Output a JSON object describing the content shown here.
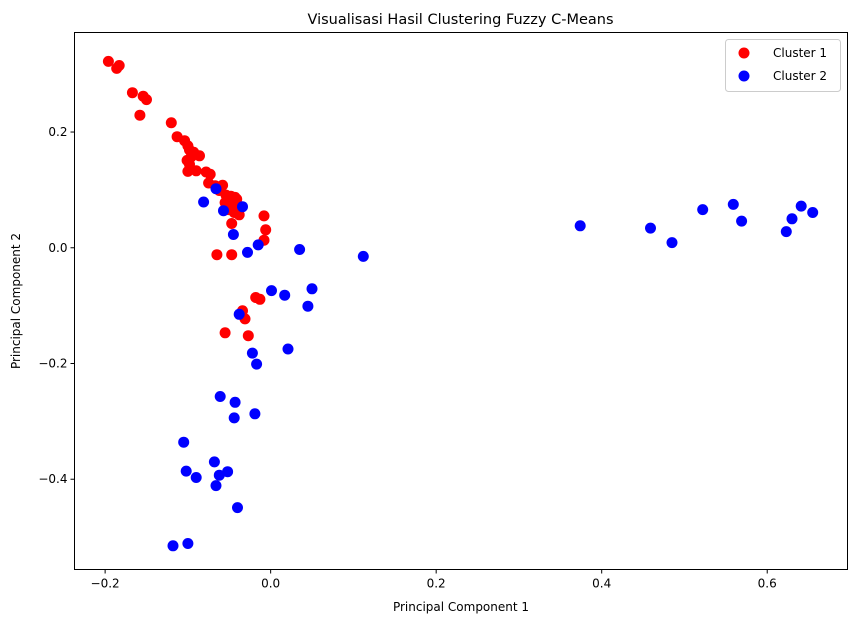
{
  "chart_data": {
    "type": "scatter",
    "title": "Visualisasi Hasil Clustering Fuzzy C-Means",
    "xlabel": "Principal Component 1",
    "ylabel": "Principal Component 2",
    "xlim": [
      -0.237,
      0.697
    ],
    "ylim": [
      -0.556,
      0.372
    ],
    "xticks": [
      -0.2,
      0.0,
      0.2,
      0.4,
      0.6
    ],
    "xtick_labels": [
      "−0.2",
      "0.0",
      "0.2",
      "0.4",
      "0.6"
    ],
    "yticks": [
      0.2,
      0.0,
      -0.2,
      -0.4
    ],
    "ytick_labels": [
      "0.2",
      "0.0",
      "−0.2",
      "−0.4"
    ],
    "grid": false,
    "legend_position": "top-right",
    "series": [
      {
        "name": "Cluster 1",
        "color": "#ff0000",
        "points": [
          [
            -0.196,
            0.322
          ],
          [
            -0.183,
            0.315
          ],
          [
            -0.186,
            0.31
          ],
          [
            -0.167,
            0.268
          ],
          [
            -0.154,
            0.262
          ],
          [
            -0.15,
            0.256
          ],
          [
            -0.158,
            0.229
          ],
          [
            -0.12,
            0.216
          ],
          [
            -0.113,
            0.192
          ],
          [
            -0.104,
            0.185
          ],
          [
            -0.1,
            0.176
          ],
          [
            -0.098,
            0.169
          ],
          [
            -0.093,
            0.165
          ],
          [
            -0.086,
            0.159
          ],
          [
            -0.096,
            0.157
          ],
          [
            -0.101,
            0.151
          ],
          [
            -0.098,
            0.144
          ],
          [
            -0.09,
            0.133
          ],
          [
            -0.1,
            0.132
          ],
          [
            -0.078,
            0.131
          ],
          [
            -0.073,
            0.127
          ],
          [
            -0.075,
            0.112
          ],
          [
            -0.067,
            0.107
          ],
          [
            -0.058,
            0.108
          ],
          [
            -0.062,
            0.099
          ],
          [
            -0.054,
            0.091
          ],
          [
            -0.048,
            0.089
          ],
          [
            -0.043,
            0.087
          ],
          [
            -0.041,
            0.084
          ],
          [
            -0.05,
            0.082
          ],
          [
            -0.055,
            0.078
          ],
          [
            -0.045,
            0.074
          ],
          [
            -0.037,
            0.07
          ],
          [
            -0.051,
            0.066
          ],
          [
            -0.044,
            0.061
          ],
          [
            -0.038,
            0.057
          ],
          [
            -0.008,
            0.055
          ],
          [
            -0.047,
            0.042
          ],
          [
            -0.006,
            0.031
          ],
          [
            -0.008,
            0.013
          ],
          [
            -0.065,
            -0.012
          ],
          [
            -0.047,
            -0.012
          ],
          [
            -0.034,
            -0.109
          ],
          [
            -0.018,
            -0.086
          ],
          [
            -0.013,
            -0.089
          ],
          [
            -0.031,
            -0.123
          ],
          [
            -0.027,
            -0.152
          ],
          [
            -0.055,
            -0.147
          ]
        ]
      },
      {
        "name": "Cluster 2",
        "color": "#0000ff",
        "points": [
          [
            -0.081,
            0.079
          ],
          [
            -0.066,
            0.102
          ],
          [
            -0.057,
            0.064
          ],
          [
            -0.034,
            0.071
          ],
          [
            -0.045,
            0.023
          ],
          [
            -0.028,
            -0.008
          ],
          [
            -0.015,
            0.005
          ],
          [
            0.035,
            -0.003
          ],
          [
            0.112,
            -0.015
          ],
          [
            0.001,
            -0.074
          ],
          [
            0.017,
            -0.082
          ],
          [
            0.05,
            -0.071
          ],
          [
            0.045,
            -0.101
          ],
          [
            -0.038,
            -0.115
          ],
          [
            0.021,
            -0.175
          ],
          [
            -0.022,
            -0.182
          ],
          [
            -0.017,
            -0.201
          ],
          [
            -0.061,
            -0.257
          ],
          [
            -0.043,
            -0.267
          ],
          [
            -0.019,
            -0.287
          ],
          [
            -0.044,
            -0.294
          ],
          [
            -0.105,
            -0.336
          ],
          [
            -0.068,
            -0.37
          ],
          [
            -0.102,
            -0.386
          ],
          [
            -0.052,
            -0.387
          ],
          [
            -0.062,
            -0.393
          ],
          [
            -0.09,
            -0.397
          ],
          [
            -0.066,
            -0.411
          ],
          [
            -0.04,
            -0.449
          ],
          [
            -0.118,
            -0.515
          ],
          [
            -0.1,
            -0.511
          ],
          [
            0.374,
            0.038
          ],
          [
            0.459,
            0.034
          ],
          [
            0.485,
            0.009
          ],
          [
            0.522,
            0.066
          ],
          [
            0.559,
            0.075
          ],
          [
            0.569,
            0.046
          ],
          [
            0.623,
            0.028
          ],
          [
            0.63,
            0.05
          ],
          [
            0.641,
            0.072
          ],
          [
            0.655,
            0.061
          ]
        ]
      }
    ]
  }
}
